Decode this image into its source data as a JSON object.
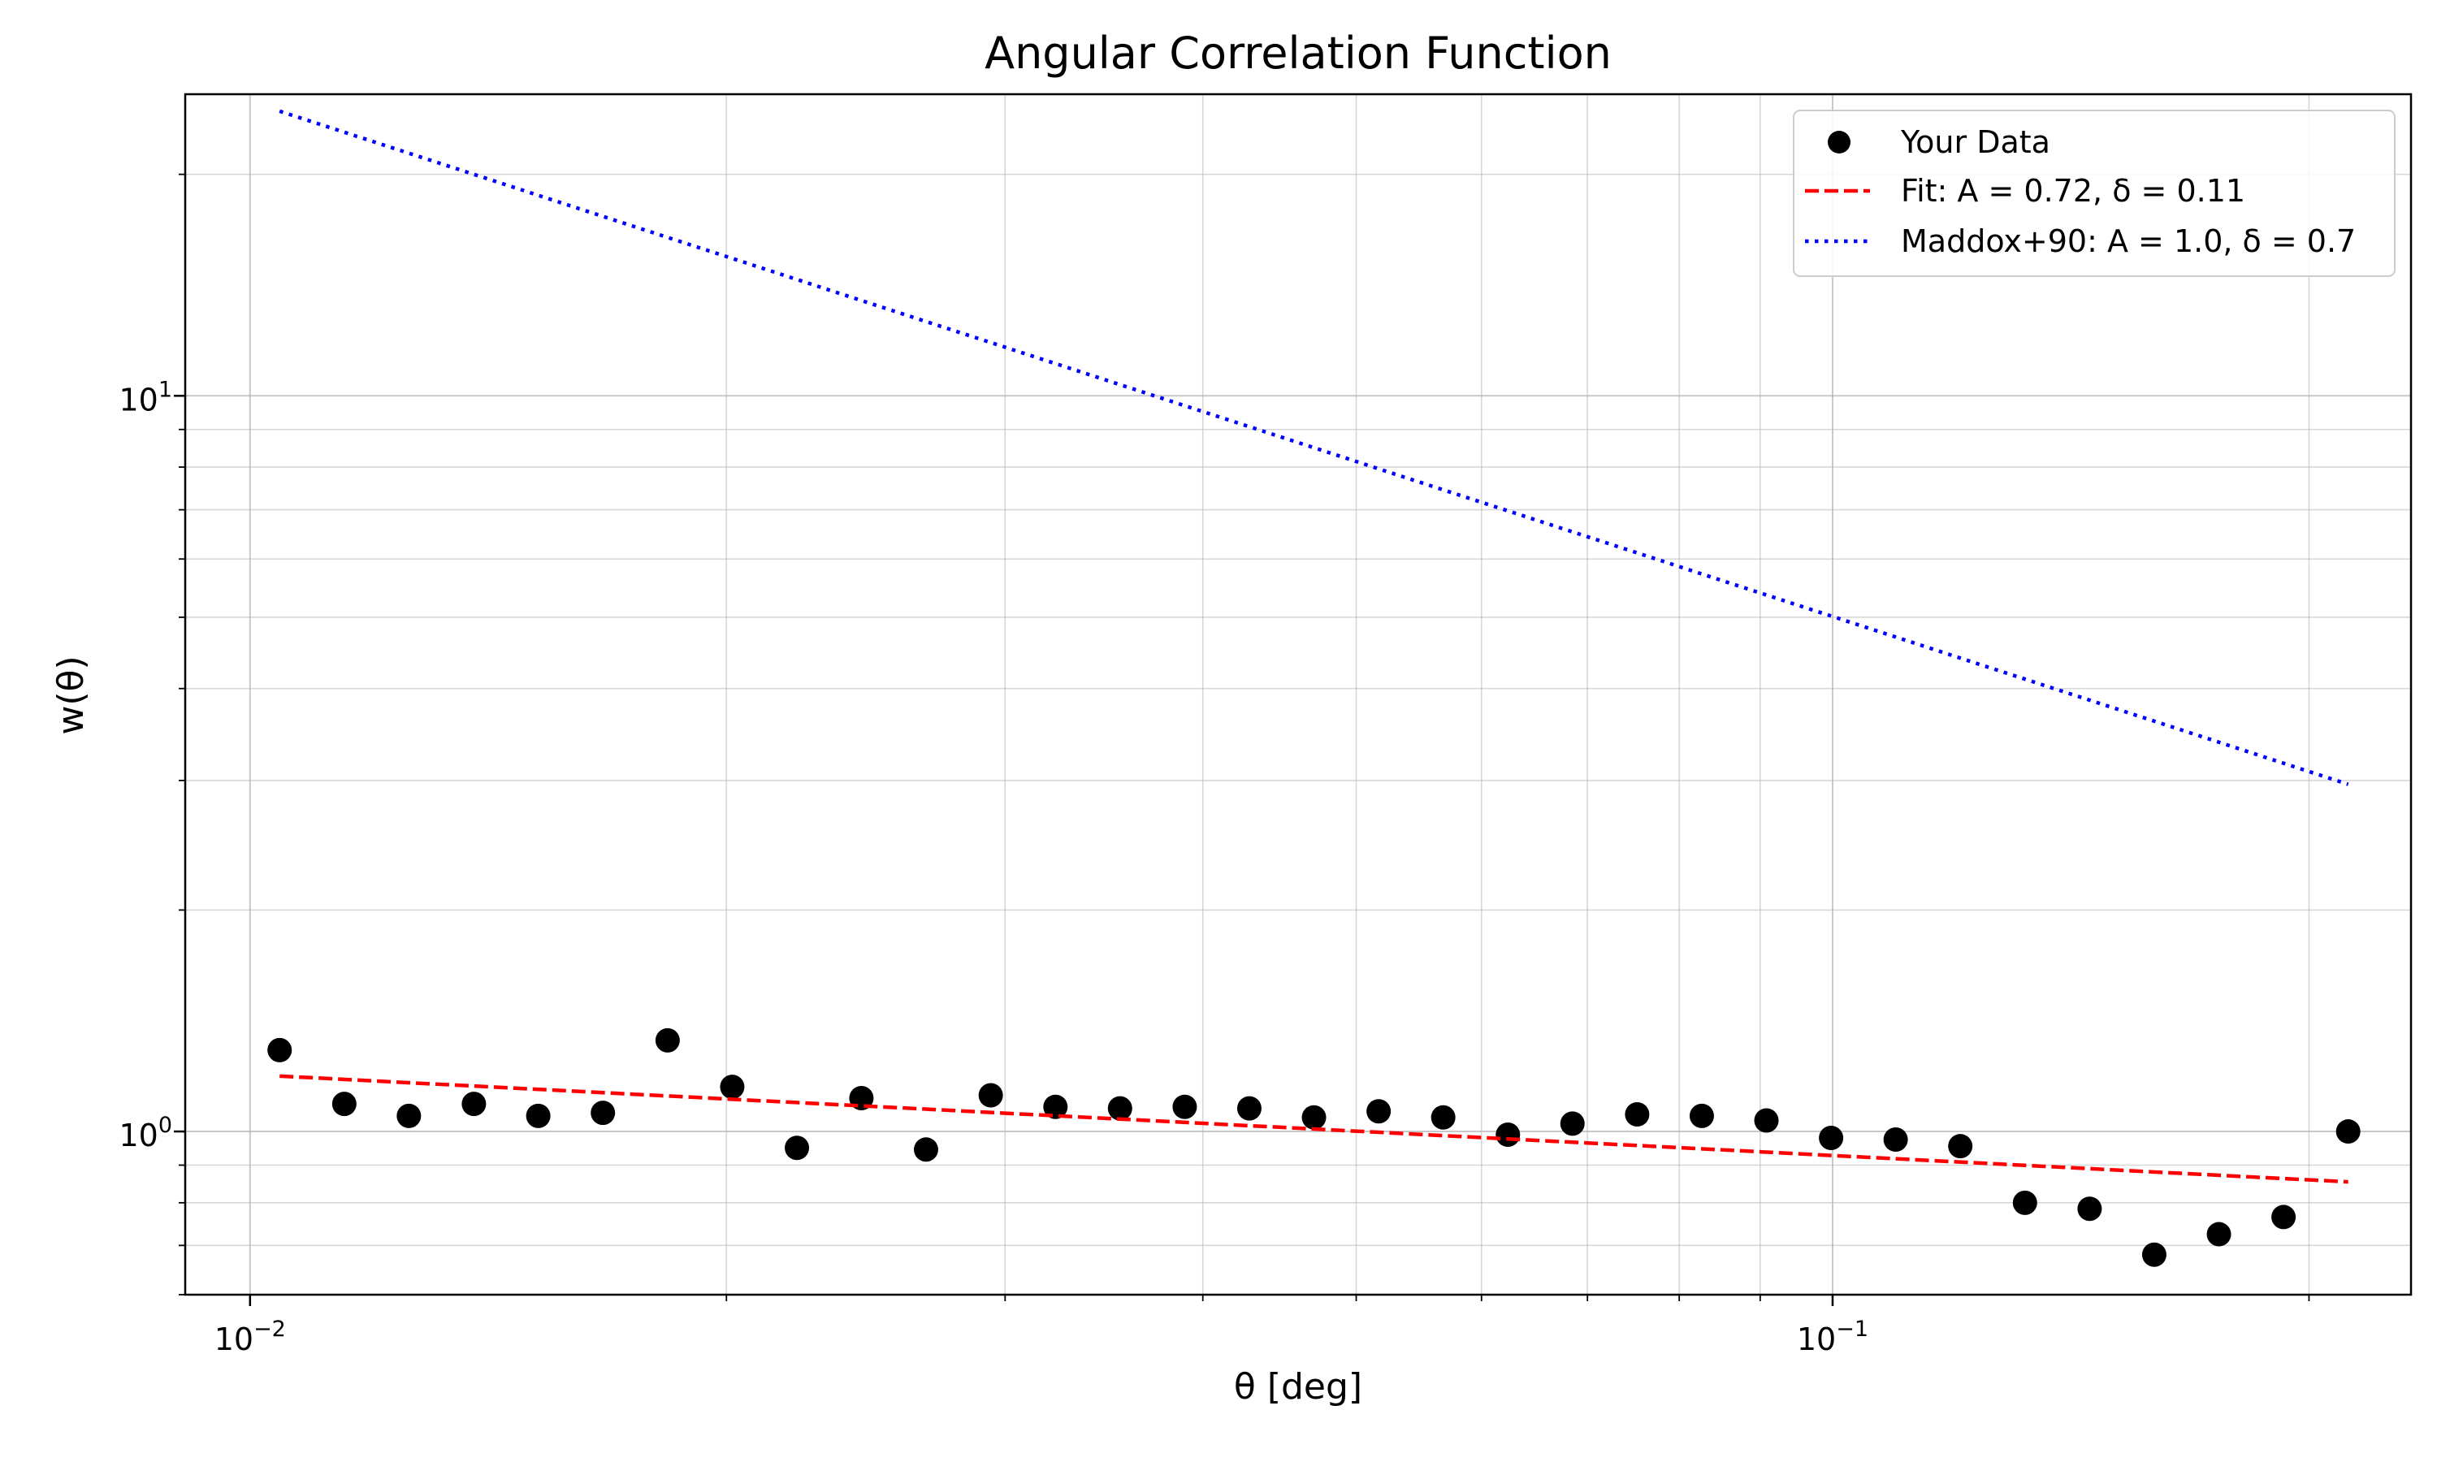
{
  "chart_data": {
    "type": "scatter",
    "title": "Angular Correlation Function",
    "xlabel": "θ [deg]",
    "ylabel": "w(θ)",
    "xscale": "log",
    "yscale": "log",
    "xlim": [
      0.0091,
      0.232
    ],
    "ylim": [
      0.6,
      25.7
    ],
    "grid": "both (major and minor)",
    "legend_position": "top-right",
    "x_ticks": [
      {
        "base": "10",
        "exp": "−2"
      },
      {
        "base": "10",
        "exp": "−1"
      }
    ],
    "y_ticks": [
      {
        "base": "10",
        "exp": "0"
      },
      {
        "base": "10",
        "exp": "1"
      }
    ],
    "legend": [
      {
        "label": "Your Data",
        "color": "#000000",
        "marker": "circle"
      },
      {
        "label": "Fit: A = 0.72, δ = 0.11",
        "color": "#ff0000",
        "style": "dashed"
      },
      {
        "label": "Maddox+90: A = 1.0, δ = 0.7",
        "color": "#0000ff",
        "style": "dotted"
      }
    ],
    "series": [
      {
        "name": "Your Data",
        "kind": "scatter",
        "color": "#000000",
        "x": [
          0.01044,
          0.01147,
          0.0126,
          0.01385,
          0.01521,
          0.01671,
          0.01836,
          0.02017,
          0.02216,
          0.02434,
          0.02674,
          0.02938,
          0.03228,
          0.03546,
          0.03896,
          0.0428,
          0.04702,
          0.05166,
          0.05675,
          0.06235,
          0.06849,
          0.07525,
          0.08267,
          0.09082,
          0.09978,
          0.10961,
          0.12042,
          0.1323,
          0.14535,
          0.15968,
          0.17543,
          0.19273,
          0.21174
        ],
        "y": [
          1.29,
          1.09,
          1.05,
          1.09,
          1.05,
          1.06,
          1.33,
          1.15,
          0.95,
          1.11,
          0.945,
          1.12,
          1.08,
          1.075,
          1.08,
          1.075,
          1.045,
          1.065,
          1.045,
          0.99,
          1.025,
          1.055,
          1.05,
          1.035,
          0.98,
          0.975,
          0.955,
          0.8,
          0.785,
          0.68,
          0.725,
          0.765,
          1.0
        ]
      },
      {
        "name": "Fit: A = 0.72, δ = 0.11",
        "kind": "line",
        "color": "#ff0000",
        "dash": "dashed",
        "A": 0.72,
        "delta": 0.11,
        "x": [
          0.01044,
          0.21174
        ]
      },
      {
        "name": "Maddox+90: A = 1.0, δ = 0.7",
        "kind": "line",
        "color": "#0000ff",
        "dash": "dotted",
        "A": 1.0,
        "delta": 0.7,
        "x": [
          0.01044,
          0.21174
        ]
      }
    ]
  }
}
